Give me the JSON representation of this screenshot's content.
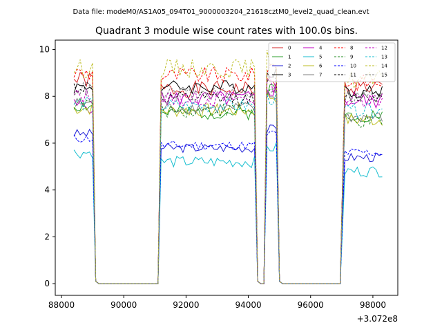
{
  "header": {
    "data_file_label": "Data file: modeM0/AS1A05_094T01_9000003204_21618cztM0_level2_quad_clean.evt"
  },
  "chart_data": {
    "type": "line",
    "title": "Quadrant 3 module wise count rates with 100.0s bins.",
    "xlabel": "",
    "ylabel": "",
    "x_offset_label": "+3.072e8",
    "xlim": [
      87800,
      98800
    ],
    "ylim": [
      -0.5,
      10.4
    ],
    "xticks": [
      88000,
      90000,
      92000,
      94000,
      96000,
      98000
    ],
    "yticks": [
      0,
      2,
      4,
      6,
      8,
      10
    ],
    "xtick_labels": [
      "88000",
      "90000",
      "92000",
      "94000",
      "96000",
      "98000"
    ],
    "ytick_labels": [
      "0",
      "2",
      "4",
      "6",
      "8",
      "10"
    ],
    "legend_position": "top-right",
    "segments": [
      {
        "start": 88400,
        "end": 89000,
        "t0": 88400
      },
      {
        "start": 91200,
        "end": 94200,
        "t0": 91100
      },
      {
        "start": 94600,
        "end": 94900,
        "t0": 94500
      },
      {
        "start": 97100,
        "end": 98300,
        "t0": 96950
      }
    ],
    "gaps": [
      {
        "start": 89100,
        "end": 91100
      },
      {
        "start": 94300,
        "end": 94500
      },
      {
        "start": 95000,
        "end": 96900
      }
    ],
    "series": [
      {
        "name": "0",
        "color": "#d62728",
        "dash": "solid",
        "levels": [
          8.7,
          8.3,
          8.5,
          8.4
        ],
        "noise": 0.35,
        "seed": 1
      },
      {
        "name": "1",
        "color": "#2ca02c",
        "dash": "solid",
        "levels": [
          7.6,
          7.3,
          8.3,
          7.2
        ],
        "noise": 0.3,
        "seed": 2
      },
      {
        "name": "2",
        "color": "#1f1fd6",
        "dash": "solid",
        "levels": [
          6.4,
          5.8,
          6.6,
          5.4
        ],
        "noise": 0.2,
        "seed": 3
      },
      {
        "name": "3",
        "color": "#000000",
        "dash": "solid",
        "levels": [
          8.4,
          8.4,
          9.1,
          8.2
        ],
        "noise": 0.3,
        "seed": 4
      },
      {
        "name": "4",
        "color": "#c000c0",
        "dash": "solid",
        "levels": [
          7.6,
          7.9,
          8.3,
          7.8
        ],
        "noise": 0.35,
        "seed": 5
      },
      {
        "name": "5",
        "color": "#17becf",
        "dash": "solid",
        "levels": [
          5.6,
          5.2,
          5.8,
          4.8
        ],
        "noise": 0.25,
        "seed": 6
      },
      {
        "name": "6",
        "color": "#bcbd22",
        "dash": "solid",
        "levels": [
          7.5,
          7.4,
          8.0,
          7.0
        ],
        "noise": 0.3,
        "seed": 7
      },
      {
        "name": "7",
        "color": "#7f7f7f",
        "dash": "solid",
        "levels": [
          7.7,
          7.5,
          8.0,
          7.1
        ],
        "noise": 0.25,
        "seed": 8
      },
      {
        "name": "8",
        "color": "#ff0000",
        "dash": "dashed",
        "levels": [
          9.0,
          8.9,
          9.3,
          8.6
        ],
        "noise": 0.35,
        "seed": 9
      },
      {
        "name": "9",
        "color": "#228b22",
        "dash": "dashed",
        "levels": [
          7.7,
          7.4,
          8.2,
          6.9
        ],
        "noise": 0.3,
        "seed": 10
      },
      {
        "name": "10",
        "color": "#0000ff",
        "dash": "dashed",
        "levels": [
          6.2,
          5.9,
          6.4,
          5.6
        ],
        "noise": 0.2,
        "seed": 11
      },
      {
        "name": "11",
        "color": "#000000",
        "dash": "dashed",
        "levels": [
          8.4,
          7.9,
          8.6,
          8.0
        ],
        "noise": 0.3,
        "seed": 12
      },
      {
        "name": "12",
        "color": "#c000c0",
        "dash": "dashed",
        "levels": [
          8.0,
          7.9,
          8.5,
          7.9
        ],
        "noise": 0.35,
        "seed": 13
      },
      {
        "name": "13",
        "color": "#17becf",
        "dash": "dashed",
        "levels": [
          7.7,
          7.6,
          7.9,
          7.4
        ],
        "noise": 0.3,
        "seed": 14
      },
      {
        "name": "14",
        "color": "#bcbd22",
        "dash": "dashed",
        "levels": [
          9.2,
          9.2,
          9.6,
          8.7
        ],
        "noise": 0.4,
        "seed": 15
      },
      {
        "name": "15",
        "color": "#7f7f7f",
        "dash": "dashed",
        "levels": [
          8.3,
          8.1,
          8.3,
          8.0
        ],
        "noise": 0.3,
        "seed": 16
      }
    ]
  }
}
